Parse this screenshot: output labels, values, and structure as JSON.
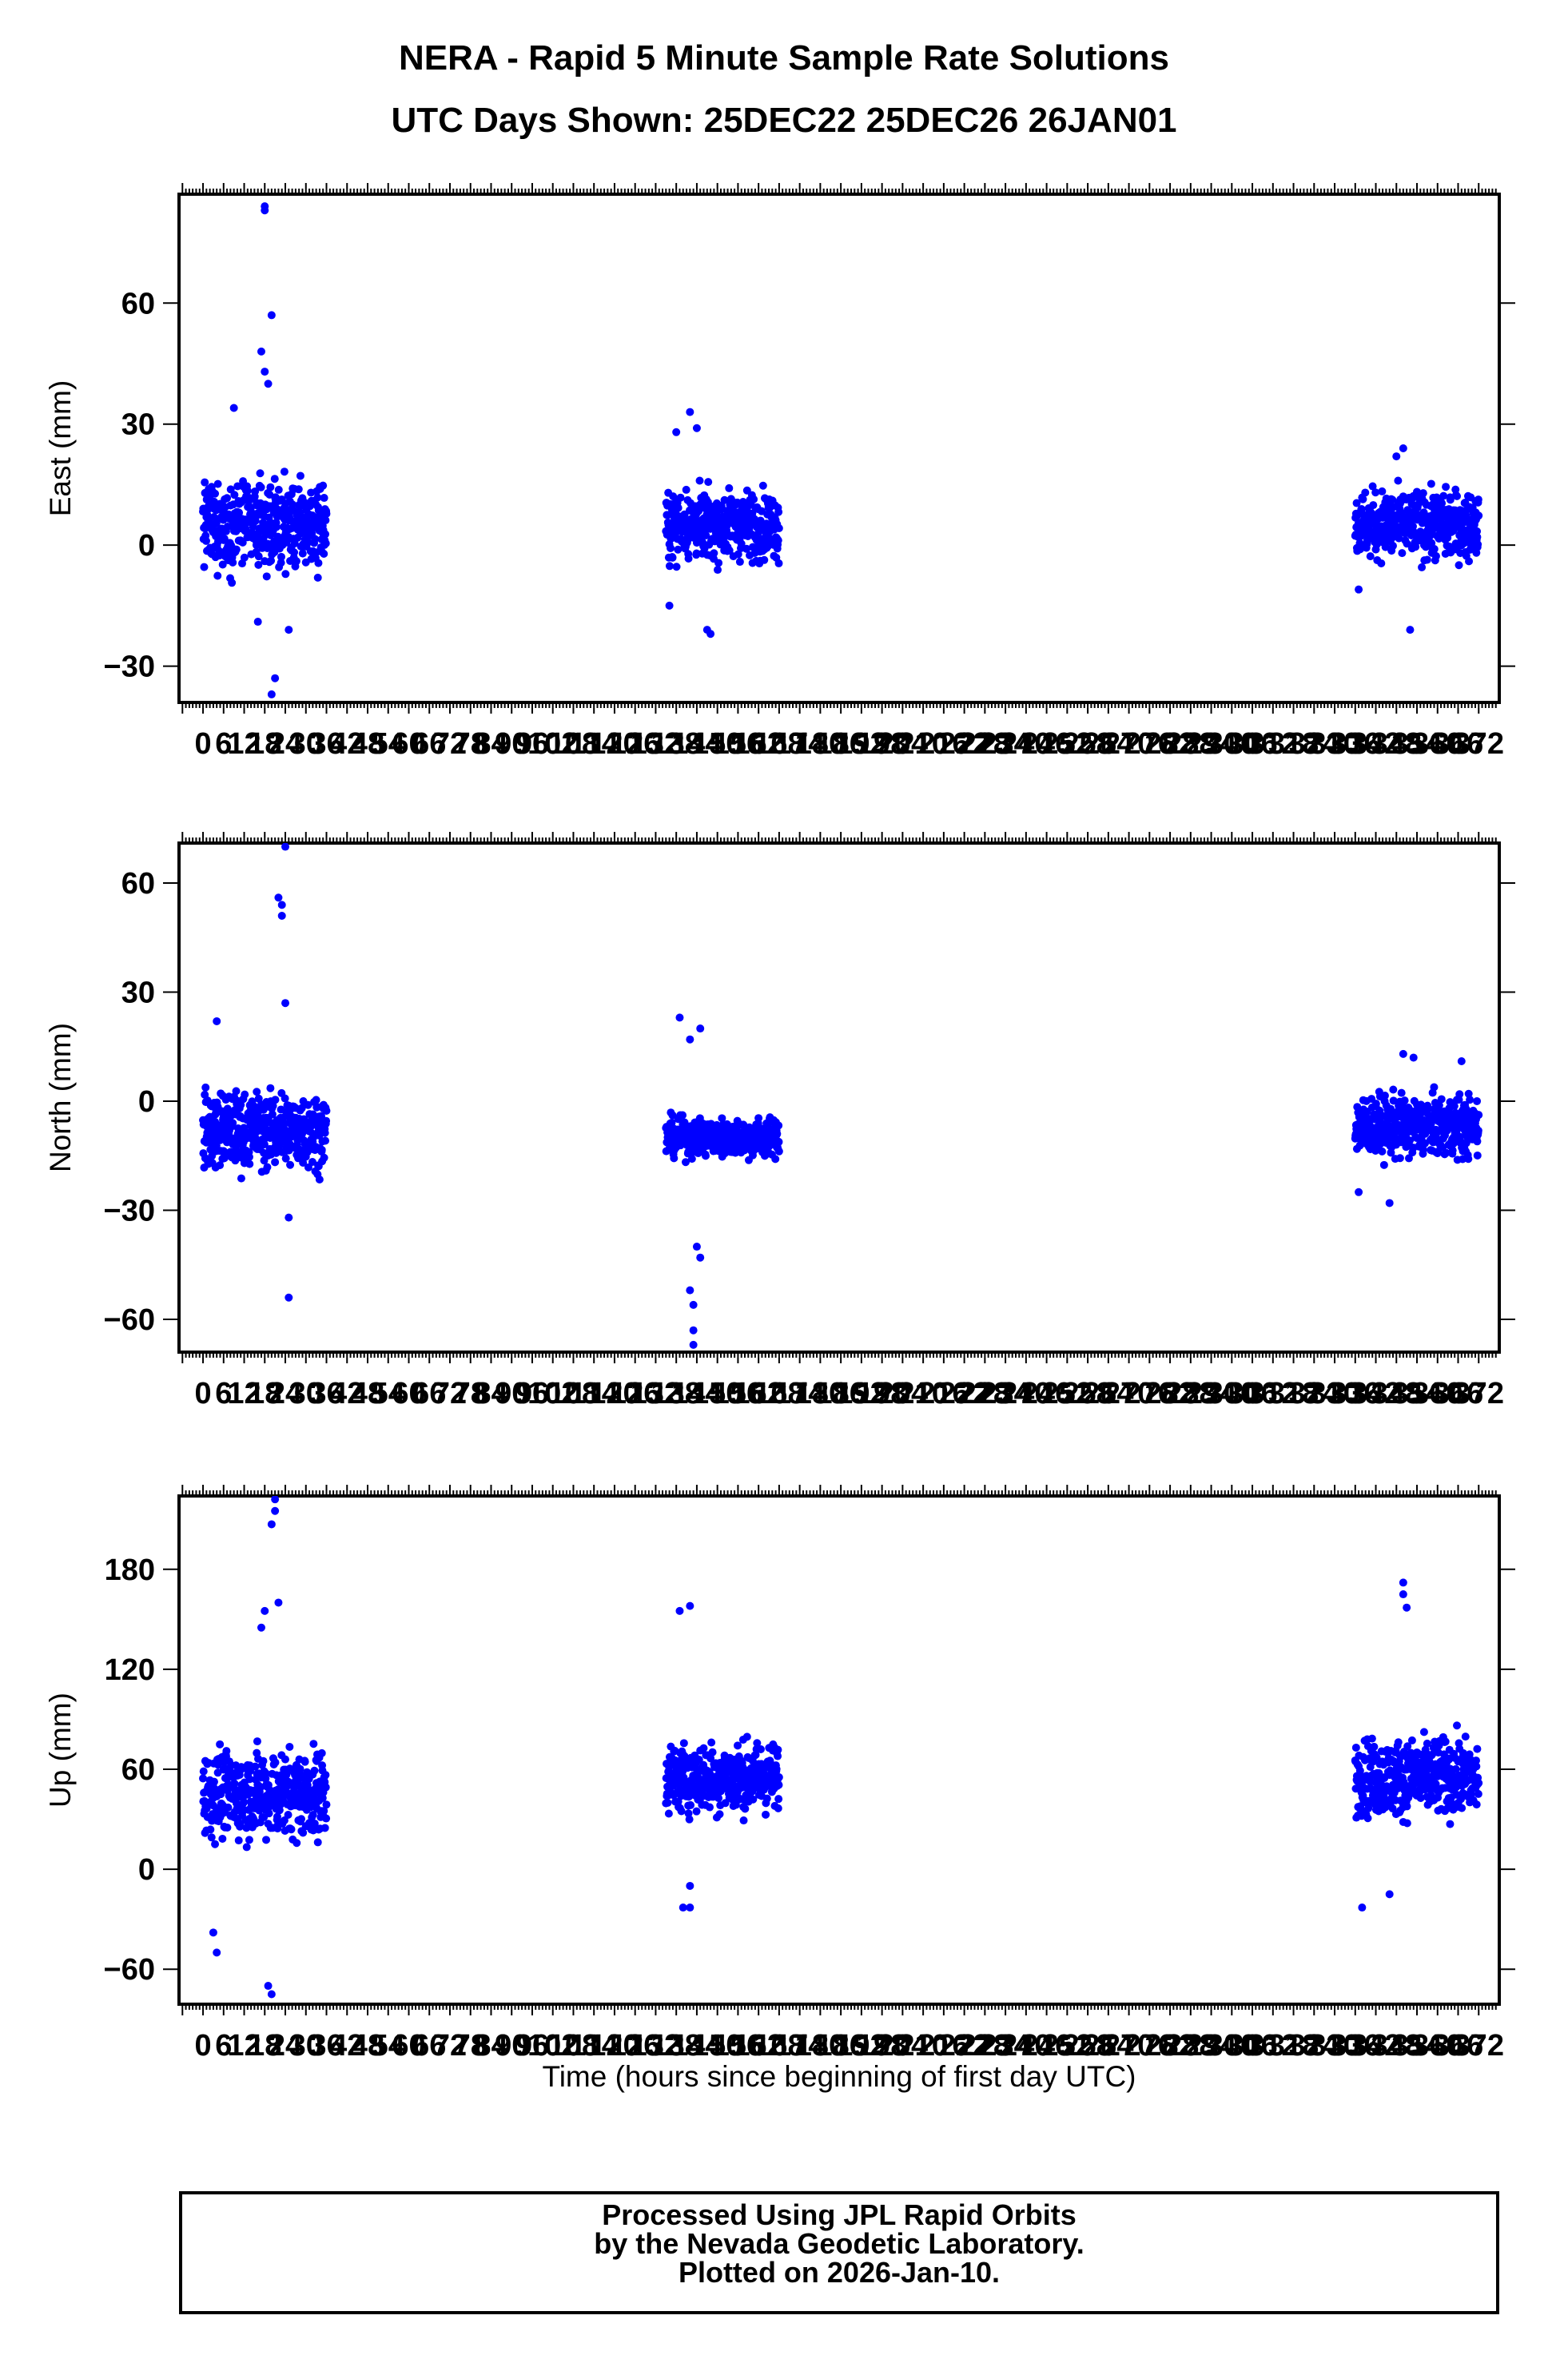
{
  "title": "NERA - Rapid 5 Minute Sample Rate Solutions",
  "subtitle": "UTC Days Shown:  25DEC22 25DEC26 26JAN01",
  "footer": {
    "line1": "Processed Using JPL Rapid Orbits",
    "line2": "by the Nevada Geodetic Laboratory.",
    "line3": "Plotted on 2026-Jan-10."
  },
  "chart_data": [
    {
      "type": "scatter",
      "ylabel": "East (mm)",
      "xlabel": "",
      "xlim": [
        -7,
        378
      ],
      "ylim": [
        -39,
        87
      ],
      "yticks": [
        -30,
        0,
        30,
        60
      ],
      "color": "#0000ff",
      "segments": [
        {
          "x0": 0,
          "x1": 36,
          "center": 5,
          "spread": 10,
          "outliers": [
            [
              18,
              84
            ],
            [
              18,
              83
            ],
            [
              20,
              57
            ],
            [
              17,
              48
            ],
            [
              18,
              43
            ],
            [
              19,
              40
            ],
            [
              9,
              34
            ],
            [
              21,
              -33
            ],
            [
              20,
              -37
            ],
            [
              25,
              -21
            ],
            [
              16,
              -19
            ]
          ]
        },
        {
          "x0": 135,
          "x1": 168,
          "center": 5,
          "spread": 8,
          "outliers": [
            [
              142,
              33
            ],
            [
              144,
              29
            ],
            [
              138,
              28
            ],
            [
              148,
              -22
            ],
            [
              147,
              -21
            ],
            [
              136,
              -15
            ]
          ]
        },
        {
          "x0": 336,
          "x1": 372,
          "center": 5,
          "spread": 8,
          "outliers": [
            [
              350,
              24
            ],
            [
              348,
              22
            ],
            [
              352,
              -21
            ],
            [
              337,
              -11
            ]
          ]
        }
      ]
    },
    {
      "type": "scatter",
      "ylabel": "North (mm)",
      "xlabel": "",
      "xlim": [
        -7,
        378
      ],
      "ylim": [
        -69,
        71
      ],
      "yticks": [
        -60,
        -30,
        0,
        30,
        60
      ],
      "color": "#0000ff",
      "segments": [
        {
          "x0": 0,
          "x1": 36,
          "center": -8,
          "spread": 10,
          "outliers": [
            [
              24,
              70
            ],
            [
              22,
              56
            ],
            [
              23,
              54
            ],
            [
              23,
              51
            ],
            [
              24,
              27
            ],
            [
              4,
              22
            ],
            [
              25,
              -32
            ],
            [
              25,
              -54
            ]
          ]
        },
        {
          "x0": 135,
          "x1": 168,
          "center": -10,
          "spread": 5,
          "outliers": [
            [
              139,
              23
            ],
            [
              145,
              20
            ],
            [
              142,
              17
            ],
            [
              144,
              -40
            ],
            [
              142,
              -52
            ],
            [
              143,
              -56
            ],
            [
              143,
              -63
            ],
            [
              143,
              -67
            ],
            [
              145,
              -43
            ]
          ]
        },
        {
          "x0": 336,
          "x1": 372,
          "center": -7,
          "spread": 8,
          "outliers": [
            [
              350,
              13
            ],
            [
              353,
              12
            ],
            [
              367,
              11
            ],
            [
              337,
              -25
            ],
            [
              346,
              -28
            ]
          ]
        }
      ]
    },
    {
      "type": "scatter",
      "ylabel": "Up (mm)",
      "xlabel": "Time (hours since beginning of first day UTC)",
      "xlim": [
        -7,
        378
      ],
      "ylim": [
        -81,
        224
      ],
      "yticks": [
        -60,
        0,
        60,
        120,
        180
      ],
      "color": "#0000ff",
      "segments": [
        {
          "x0": 0,
          "x1": 36,
          "center": 45,
          "spread": 25,
          "outliers": [
            [
              21,
              222
            ],
            [
              21,
              215
            ],
            [
              20,
              207
            ],
            [
              22,
              160
            ],
            [
              18,
              155
            ],
            [
              17,
              145
            ],
            [
              4,
              -50
            ],
            [
              3,
              -38
            ],
            [
              20,
              -75
            ],
            [
              19,
              -70
            ]
          ]
        },
        {
          "x0": 135,
          "x1": 168,
          "center": 55,
          "spread": 20,
          "outliers": [
            [
              142,
              158
            ],
            [
              139,
              155
            ],
            [
              140,
              -23
            ],
            [
              142,
              -23
            ],
            [
              142,
              -10
            ]
          ]
        },
        {
          "x0": 336,
          "x1": 372,
          "center": 55,
          "spread": 22,
          "outliers": [
            [
              350,
              172
            ],
            [
              350,
              165
            ],
            [
              351,
              157
            ],
            [
              338,
              -23
            ],
            [
              346,
              -15
            ]
          ]
        }
      ]
    }
  ],
  "x_tick_labels": [
    "0",
    "6",
    "12",
    "18",
    "24",
    "30",
    "36",
    "42",
    "48",
    "54",
    "60",
    "66",
    "72",
    "78",
    "84",
    "90",
    "96",
    "102",
    "108",
    "114",
    "120",
    "126",
    "132",
    "138",
    "144",
    "150",
    "156",
    "162",
    "168",
    "174",
    "180",
    "186",
    "192",
    "198",
    "204",
    "210",
    "216",
    "222",
    "228",
    "234",
    "240",
    "246",
    "252",
    "258",
    "264",
    "270",
    "276",
    "282",
    "288",
    "294",
    "300",
    "306",
    "312",
    "318",
    "324",
    "330",
    "336",
    "342",
    "348",
    "354",
    "360",
    "366",
    "372"
  ]
}
